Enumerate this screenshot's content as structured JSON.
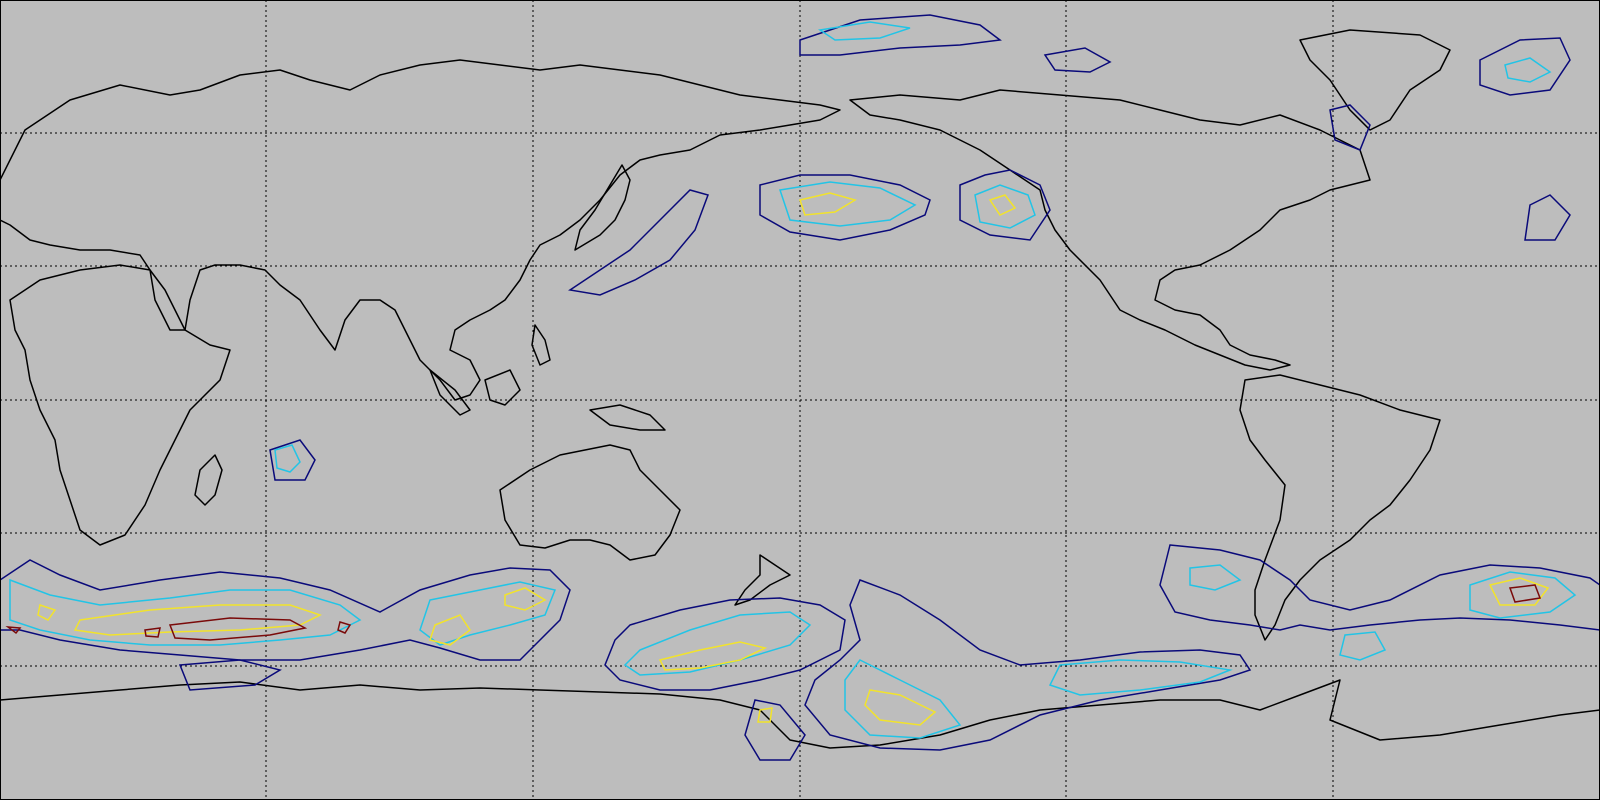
{
  "map": {
    "projection": "equirectangular",
    "central_longitude": 180,
    "background_color": "#bdbdbd",
    "coastline_color": "#000000",
    "graticule": {
      "style": "dotted",
      "color": "#000000",
      "meridian_spacing_deg": 60,
      "parallel_spacing_deg": 30
    },
    "contour_levels": [
      {
        "level": 1,
        "color": "#0a0a7a"
      },
      {
        "level": 2,
        "color": "#22c4e6"
      },
      {
        "level": 3,
        "color": "#f2e32b"
      },
      {
        "level": 4,
        "color": "#7a0a0a"
      }
    ]
  }
}
